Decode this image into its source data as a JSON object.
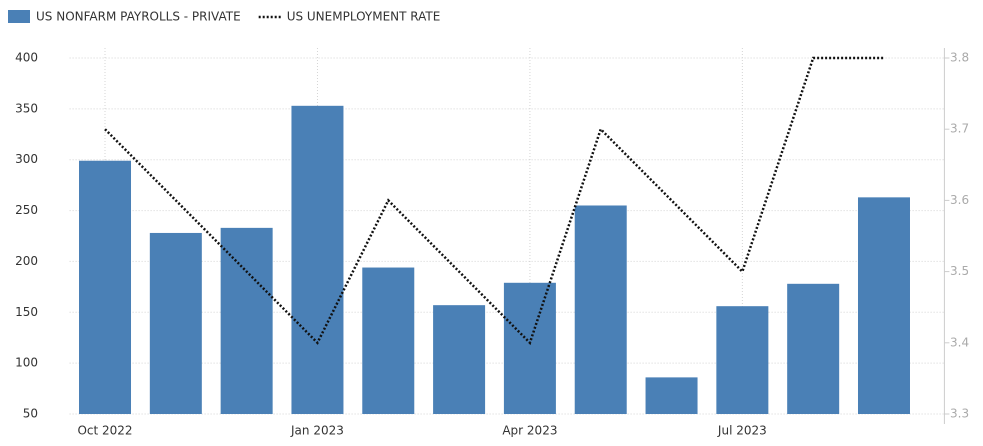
{
  "chart_data": {
    "type": "bar",
    "categories": [
      "Oct 2022",
      null,
      null,
      "Jan 2023",
      null,
      null,
      "Apr 2023",
      null,
      null,
      "Jul 2023",
      null,
      null
    ],
    "series": [
      {
        "name": "US NONFARM PAYROLLS - PRIVATE",
        "type": "bar",
        "color": "#4a80b6",
        "values": [
          299,
          228,
          233,
          353,
          194,
          157,
          179,
          255,
          86,
          156,
          178,
          263
        ]
      },
      {
        "name": "US UNEMPLOYMENT RATE",
        "type": "line",
        "axis": "y2",
        "color": "#111111",
        "values": [
          3.7,
          3.6,
          3.5,
          3.4,
          3.6,
          3.5,
          3.4,
          3.7,
          3.6,
          3.5,
          3.8,
          3.8
        ]
      }
    ],
    "ylim": [
      50,
      400
    ],
    "yticks": [
      50,
      100,
      150,
      200,
      250,
      300,
      350,
      400
    ],
    "y2lim": [
      3.3,
      3.8
    ],
    "y2ticks": [
      3.3,
      3.4,
      3.5,
      3.6,
      3.7,
      3.8
    ],
    "grid": true
  }
}
